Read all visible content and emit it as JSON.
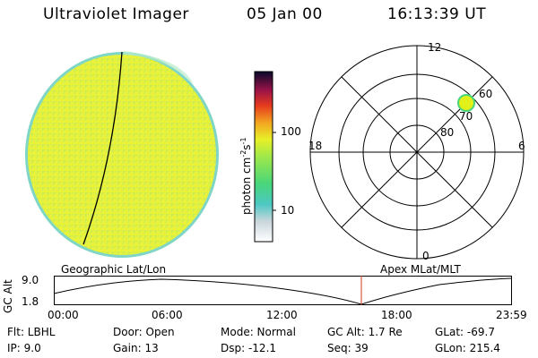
{
  "header": {
    "title": "Ultraviolet Imager",
    "date": "05 Jan 00",
    "time": "16:13:39 UT"
  },
  "colorbar": {
    "unit_label": "photon cm",
    "unit_sup1": "-2",
    "unit_mid": "s",
    "unit_sup2": "-1",
    "tick_100": "100",
    "tick_10": "10"
  },
  "polar": {
    "hour_top": "12",
    "hour_bottom": "0",
    "hour_left": "18",
    "hour_right": "6",
    "lat_60": "60",
    "lat_70": "70",
    "lat_80": "80",
    "spot_color": "#e2f01a"
  },
  "timeline": {
    "left_label": "Geographic Lat/Lon",
    "right_label": "Apex MLat/MLT",
    "y_title": "GC Alt",
    "y_top": "9.0",
    "y_bottom": "1.8",
    "x_ticks": [
      "00:00",
      "06:00",
      "12:00",
      "18:00",
      "23:59"
    ],
    "marker_color": "#d03a1a"
  },
  "footer": {
    "flt": "Flt: LBHL",
    "ip": "IP:  9.0",
    "door": "Door: Open",
    "gain": "Gain: 13",
    "mode": "Mode: Normal",
    "dsp": "Dsp:  -12.1",
    "gcalt": "GC Alt: 1.7 Re",
    "seq": "Seq: 39",
    "glat": "GLat: -69.7",
    "glon": "GLon: 215.4"
  }
}
